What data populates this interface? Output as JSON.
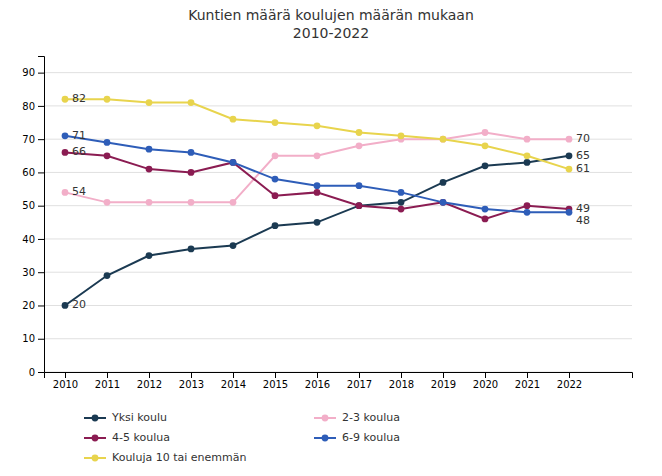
{
  "chart_data": {
    "type": "line",
    "title": "Kuntien määrä koulujen määrän mukaan\n2010-2022",
    "x": [
      2010,
      2011,
      2012,
      2013,
      2014,
      2015,
      2016,
      2017,
      2018,
      2019,
      2020,
      2021,
      2022
    ],
    "series": [
      {
        "name": "Yksi koulu",
        "color": "#1b3a52",
        "marker": "circle",
        "values": [
          20,
          29,
          35,
          37,
          38,
          44,
          45,
          50,
          51,
          57,
          62,
          63,
          65
        ]
      },
      {
        "name": "2-3 koulua",
        "color": "#f2aec8",
        "marker": "circle",
        "values": [
          54,
          51,
          51,
          51,
          51,
          65,
          65,
          68,
          70,
          70,
          72,
          70,
          70
        ]
      },
      {
        "name": "4-5 koulua",
        "color": "#8b1c52",
        "marker": "circle",
        "values": [
          66,
          65,
          61,
          60,
          63,
          53,
          54,
          50,
          49,
          51,
          46,
          50,
          49
        ]
      },
      {
        "name": "6-9 koulua",
        "color": "#2e5db8",
        "marker": "circle",
        "values": [
          71,
          69,
          67,
          66,
          63,
          58,
          56,
          56,
          54,
          51,
          49,
          48,
          48
        ]
      },
      {
        "name": "Kouluja 10 tai enemmän",
        "color": "#e8d44d",
        "marker": "circle",
        "values": [
          82,
          82,
          81,
          81,
          76,
          75,
          74,
          72,
          71,
          70,
          68,
          65,
          61
        ]
      }
    ],
    "annotations": [
      {
        "text": "20",
        "x": 2010,
        "y": 20
      },
      {
        "text": "54",
        "x": 2010,
        "y": 54
      },
      {
        "text": "66",
        "x": 2010,
        "y": 66
      },
      {
        "text": "71",
        "x": 2010,
        "y": 71
      },
      {
        "text": "82",
        "x": 2010,
        "y": 82
      },
      {
        "text": "65",
        "x": 2022,
        "y": 65
      },
      {
        "text": "70",
        "x": 2022,
        "y": 70
      },
      {
        "text": "49",
        "x": 2022,
        "y": 49
      },
      {
        "text": "48",
        "x": 2022,
        "y": 48
      },
      {
        "text": "61",
        "x": 2022,
        "y": 61
      }
    ],
    "xlim": [
      2009.5,
      2023.5
    ],
    "xticks": [
      2010,
      2011,
      2012,
      2013,
      2014,
      2015,
      2016,
      2017,
      2018,
      2019,
      2020,
      2021,
      2022
    ],
    "ylim": [
      0,
      95
    ],
    "yticks": [
      0,
      10,
      20,
      30,
      40,
      50,
      60,
      70,
      80,
      90
    ],
    "grid": true,
    "legend": "bottom"
  }
}
